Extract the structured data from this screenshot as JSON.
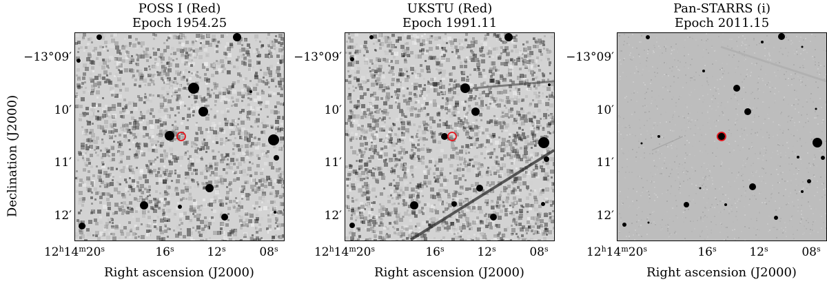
{
  "y_label": "Declination (J2000)",
  "x_label": "Right ascension (J2000)",
  "y_ticks": [
    "−13°09′",
    "10′",
    "11′",
    "12′"
  ],
  "x_ticks": [
    {
      "main": "12",
      "sup1": "h",
      "mid": "14",
      "sup2": "m",
      "tail": "20",
      "sup3": "s"
    },
    {
      "main": "16",
      "sup1": "s"
    },
    {
      "main": "12",
      "sup1": "s"
    },
    {
      "main": "08",
      "sup1": "s"
    }
  ],
  "panels": [
    {
      "survey": "POSS I (Red)",
      "epoch": "Epoch 1954.25",
      "style": "poss"
    },
    {
      "survey": "UKSTU (Red)",
      "epoch": "Epoch 1991.11",
      "style": "ukstu"
    },
    {
      "survey": "Pan-STARRS (i)",
      "epoch": "Epoch 2011.15",
      "style": "ps"
    }
  ],
  "colors": {
    "marker": "#e8141c",
    "star": "#000000"
  }
}
